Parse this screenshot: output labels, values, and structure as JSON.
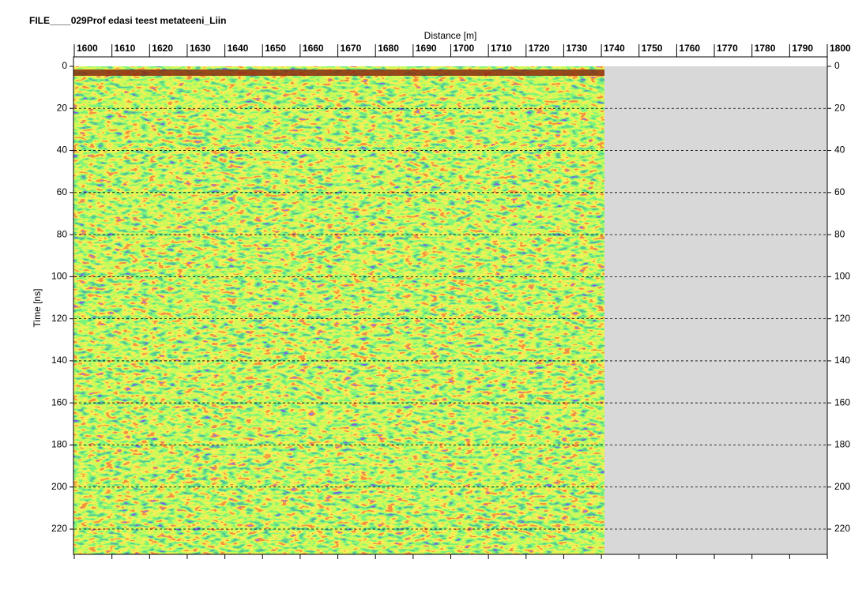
{
  "chart_data": {
    "type": "radargram",
    "title": "FILE____029Prof edasi teest metateeni_Liin",
    "x_label": "Distance [m]",
    "y_label": "Time [ns]",
    "xlim": [
      1600,
      1800
    ],
    "xticks": [
      1600,
      1610,
      1620,
      1630,
      1640,
      1650,
      1660,
      1670,
      1680,
      1690,
      1700,
      1710,
      1720,
      1730,
      1740,
      1750,
      1760,
      1770,
      1780,
      1790,
      1800
    ],
    "ylim": [
      0,
      232
    ],
    "yticks": [
      0,
      20,
      40,
      60,
      80,
      100,
      120,
      140,
      160,
      180,
      200,
      220
    ],
    "grid": true
  }
}
